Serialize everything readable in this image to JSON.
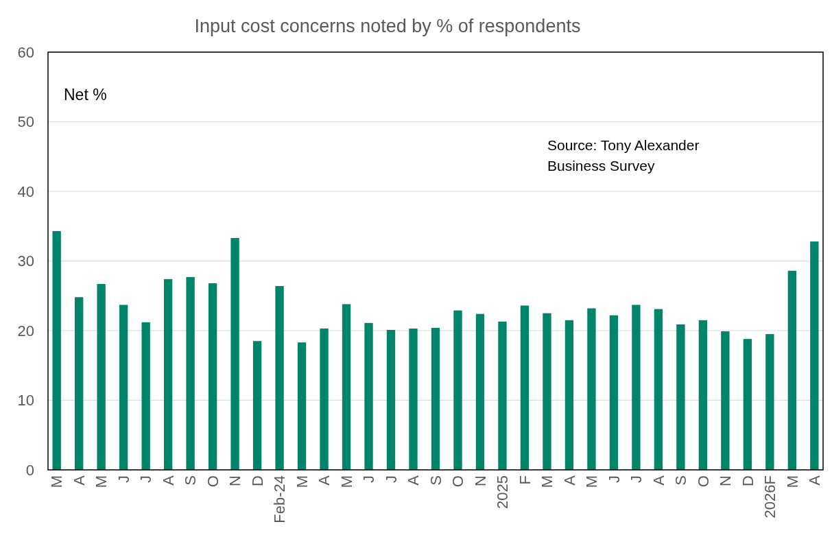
{
  "chart_data": {
    "type": "bar",
    "title": "Input cost concerns noted by % of respondents",
    "categories": [
      "M",
      "A",
      "M",
      "J",
      "J",
      "A",
      "S",
      "O",
      "N",
      "D",
      "Feb-24",
      "M",
      "A",
      "M",
      "J",
      "J",
      "A",
      "S",
      "O",
      "N",
      "2025",
      "F",
      "M",
      "A",
      "M",
      "J",
      "J",
      "A",
      "S",
      "O",
      "N",
      "D",
      "2026F",
      "M",
      "A"
    ],
    "values": [
      34.3,
      24.8,
      26.7,
      23.7,
      21.2,
      27.4,
      27.7,
      26.8,
      33.3,
      18.5,
      26.4,
      18.3,
      20.3,
      23.8,
      21.1,
      20.1,
      20.3,
      20.4,
      22.9,
      22.4,
      21.3,
      23.6,
      22.5,
      21.5,
      23.2,
      22.2,
      23.7,
      23.1,
      20.9,
      21.5,
      19.9,
      18.8,
      19.5,
      28.6,
      32.8
    ],
    "color": "#00856a",
    "ylim": [
      0,
      60
    ],
    "yticks": [
      0,
      10,
      20,
      30,
      40,
      50,
      60
    ],
    "grid": "y",
    "annotations": [
      "Net %",
      "Source: Tony Alexander Business Survey"
    ]
  }
}
